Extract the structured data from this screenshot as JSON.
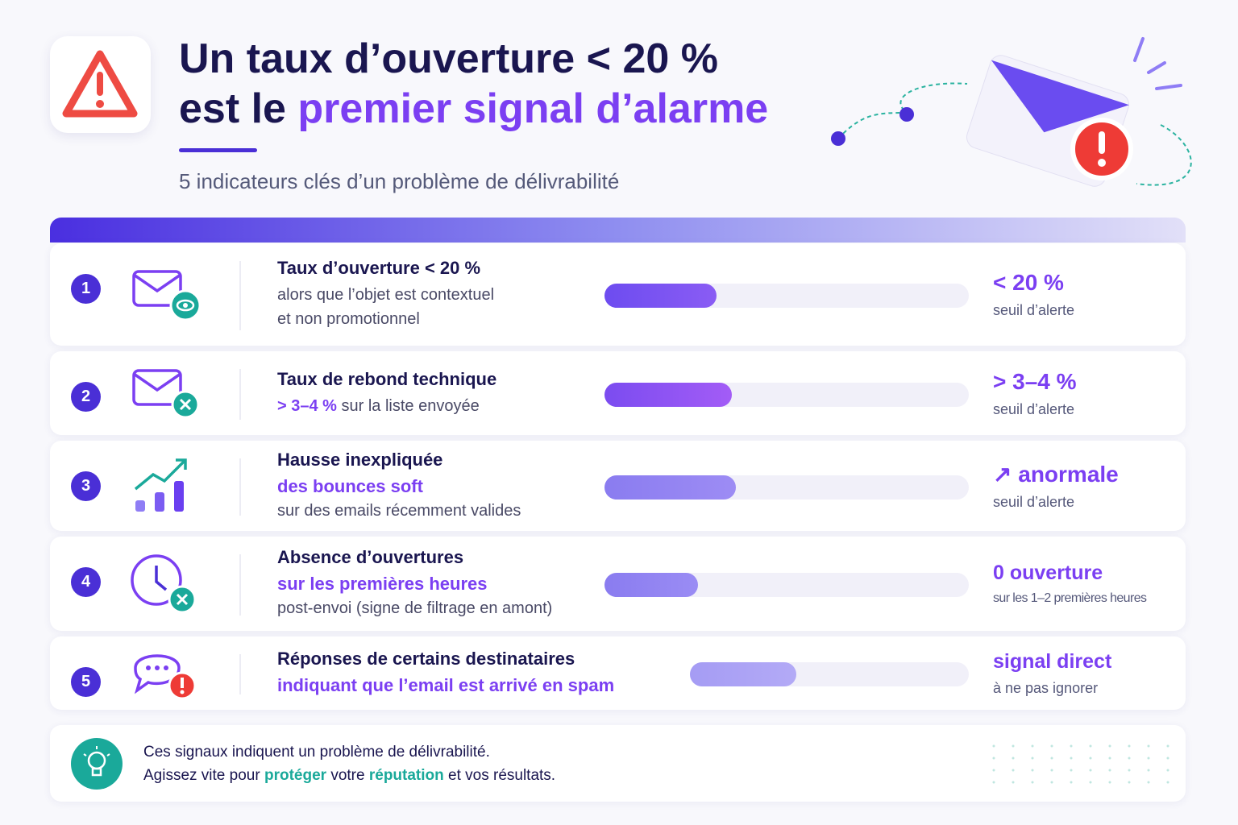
{
  "header": {
    "title_line1": "Un taux d’ouverture < 20 %",
    "title_line2_plain": "est le ",
    "title_line2_highlight": "premier signal d’alarme",
    "subtitle": "5 indicateurs clés d’un problème de délivrabilité"
  },
  "rows": [
    {
      "number": "1",
      "title": "Taux d’ouverture < 20 %",
      "lines": [
        [
          {
            "text": "alors que l’objet est contextuel"
          }
        ],
        [
          {
            "text": "et non promotionnel"
          }
        ]
      ],
      "value": "< 20 %",
      "note": "seuil d’alerte"
    },
    {
      "number": "2",
      "title": "Taux de rebond technique",
      "lines": [
        [
          {
            "text": "> 3–4 %",
            "color": "#7b3ff2"
          },
          {
            "text": " sur la liste envoyée"
          }
        ]
      ],
      "value": "> 3–4 %",
      "note": "seuil d’alerte"
    },
    {
      "number": "3",
      "title": "Hausse inexpliquée",
      "lines": [
        [
          {
            "text": "des bounces soft",
            "color": "#7b3ff2"
          }
        ],
        [
          {
            "text": "sur des emails récemment valides"
          }
        ]
      ],
      "value": "↗ anormale",
      "note": "seuil d’alerte"
    },
    {
      "number": "4",
      "title": "Absence d’ouvertures",
      "lines": [
        [
          {
            "text": "sur les premières heures",
            "color": "#7b3ff2"
          }
        ],
        [
          {
            "text": "post-envoi (signe de filtrage en amont)"
          }
        ]
      ],
      "value": "0 ouverture",
      "note": "sur les 1–2 premières heures"
    },
    {
      "number": "5",
      "title": "Réponses de certains destinataires",
      "lines": [
        [
          {
            "text": "indiquant que l’email est arrivé en spam",
            "color": "#7b3ff2"
          }
        ]
      ],
      "value": "signal direct",
      "note": "à ne pas ignorer"
    }
  ],
  "footer": {
    "line1": "Ces signaux indiquent un problème de délivrabilité.",
    "line2": [
      {
        "text": "Agissez vite pour "
      },
      {
        "text": "protéger",
        "color": "#1aa99a"
      },
      {
        "text": " votre "
      },
      {
        "text": "réputation",
        "color": "#1aa99a"
      },
      {
        "text": " et vos résultats."
      }
    ]
  }
}
